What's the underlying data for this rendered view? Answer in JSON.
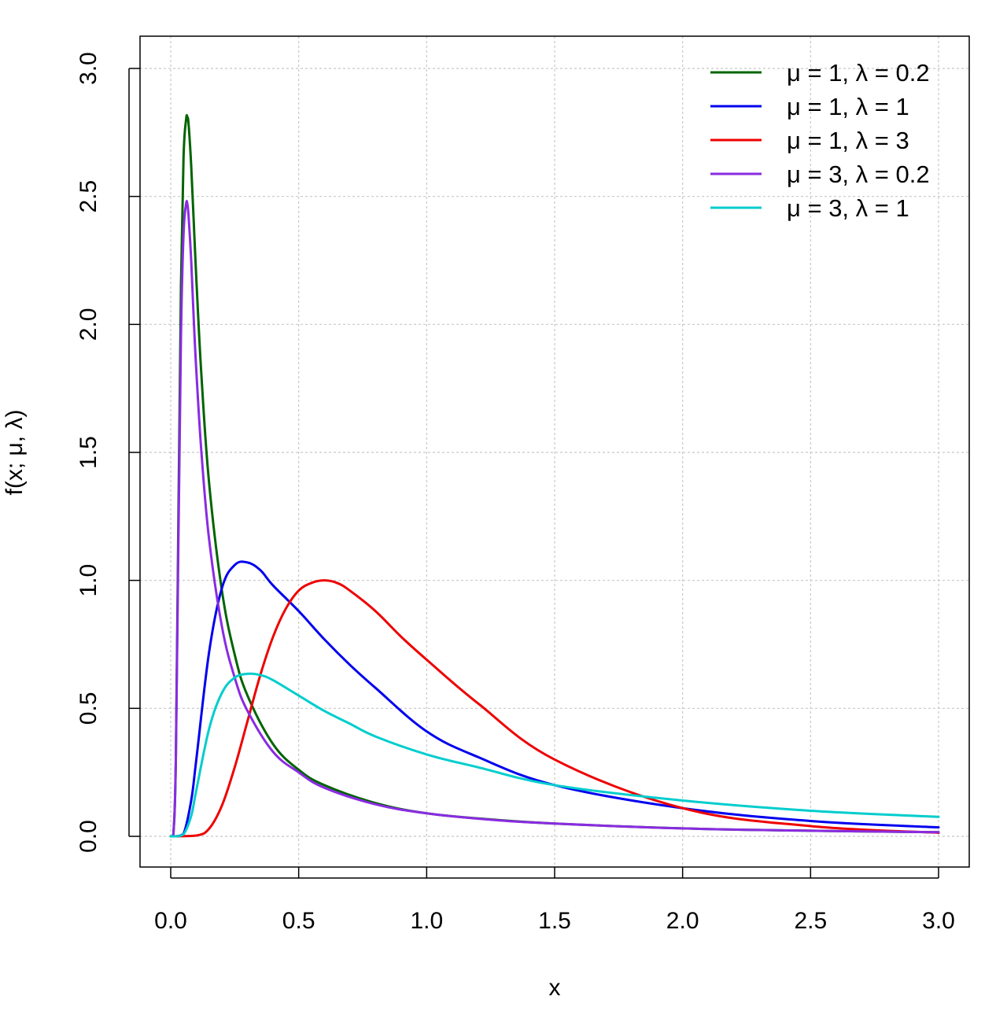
{
  "chart_data": {
    "type": "line",
    "title": "",
    "xlabel": "x",
    "ylabel": "f(x;  μ, λ)",
    "xlim": [
      0,
      3
    ],
    "ylim": [
      0,
      3
    ],
    "x_ticks": [
      "0.0",
      "0.5",
      "1.0",
      "1.5",
      "2.0",
      "2.5",
      "3.0"
    ],
    "y_ticks": [
      "0.0",
      "0.5",
      "1.0",
      "1.5",
      "2.0",
      "2.5",
      "3.0"
    ],
    "grid": true,
    "legend_position": "top-right",
    "series": [
      {
        "name": "μ = 1, λ = 0.2",
        "color": "#006400",
        "x": [
          0.0,
          0.01,
          0.02,
          0.03,
          0.04,
          0.05,
          0.06,
          0.065,
          0.07,
          0.08,
          0.09,
          0.1,
          0.12,
          0.15,
          0.2,
          0.25,
          0.3,
          0.4,
          0.5,
          0.6,
          0.8,
          1.0,
          1.25,
          1.5,
          2.0,
          2.5,
          3.0
        ],
        "y": [
          0.0,
          0.003,
          0.3,
          1.25,
          2.15,
          2.65,
          2.8,
          2.81,
          2.78,
          2.62,
          2.4,
          2.18,
          1.8,
          1.38,
          0.96,
          0.71,
          0.55,
          0.36,
          0.26,
          0.2,
          0.13,
          0.09,
          0.066,
          0.05,
          0.031,
          0.022,
          0.016
        ]
      },
      {
        "name": "μ = 1, λ = 1",
        "color": "#0000EE",
        "x": [
          0.0,
          0.02,
          0.05,
          0.08,
          0.1,
          0.15,
          0.2,
          0.25,
          0.3,
          0.35,
          0.4,
          0.5,
          0.6,
          0.7,
          0.8,
          1.0,
          1.2,
          1.5,
          2.0,
          2.5,
          3.0
        ],
        "y": [
          0.0,
          0.0,
          0.01,
          0.14,
          0.3,
          0.72,
          0.97,
          1.06,
          1.07,
          1.04,
          0.98,
          0.88,
          0.77,
          0.67,
          0.58,
          0.41,
          0.31,
          0.2,
          0.11,
          0.06,
          0.035
        ]
      },
      {
        "name": "μ = 1, λ = 3",
        "color": "#EE0000",
        "x": [
          0.0,
          0.1,
          0.15,
          0.2,
          0.25,
          0.3,
          0.35,
          0.4,
          0.45,
          0.5,
          0.55,
          0.6,
          0.65,
          0.7,
          0.8,
          0.9,
          1.0,
          1.2,
          1.5,
          2.0,
          2.5,
          3.0
        ],
        "y": [
          0.0,
          0.003,
          0.03,
          0.12,
          0.27,
          0.45,
          0.63,
          0.78,
          0.89,
          0.96,
          0.99,
          1.0,
          0.99,
          0.96,
          0.88,
          0.78,
          0.69,
          0.52,
          0.3,
          0.11,
          0.04,
          0.014
        ]
      },
      {
        "name": "μ = 3, λ = 0.2",
        "color": "#8A2BE2",
        "x": [
          0.0,
          0.01,
          0.02,
          0.03,
          0.04,
          0.05,
          0.06,
          0.065,
          0.07,
          0.08,
          0.09,
          0.1,
          0.12,
          0.15,
          0.2,
          0.25,
          0.3,
          0.4,
          0.5,
          0.6,
          0.8,
          1.0,
          1.25,
          1.5,
          2.0,
          2.5,
          3.0
        ],
        "y": [
          0.0,
          0.003,
          0.3,
          1.15,
          1.95,
          2.35,
          2.47,
          2.47,
          2.42,
          2.25,
          2.02,
          1.82,
          1.5,
          1.16,
          0.82,
          0.62,
          0.49,
          0.33,
          0.25,
          0.19,
          0.125,
          0.09,
          0.065,
          0.05,
          0.031,
          0.022,
          0.016
        ]
      },
      {
        "name": "μ = 3, λ = 1",
        "color": "#00CDCD",
        "x": [
          0.0,
          0.02,
          0.05,
          0.08,
          0.1,
          0.15,
          0.2,
          0.25,
          0.3,
          0.35,
          0.4,
          0.5,
          0.6,
          0.7,
          0.8,
          1.0,
          1.2,
          1.5,
          2.0,
          2.5,
          3.0
        ],
        "y": [
          0.0,
          0.0,
          0.008,
          0.08,
          0.18,
          0.42,
          0.56,
          0.62,
          0.635,
          0.63,
          0.61,
          0.55,
          0.49,
          0.44,
          0.39,
          0.32,
          0.27,
          0.2,
          0.14,
          0.1,
          0.076
        ]
      }
    ]
  }
}
